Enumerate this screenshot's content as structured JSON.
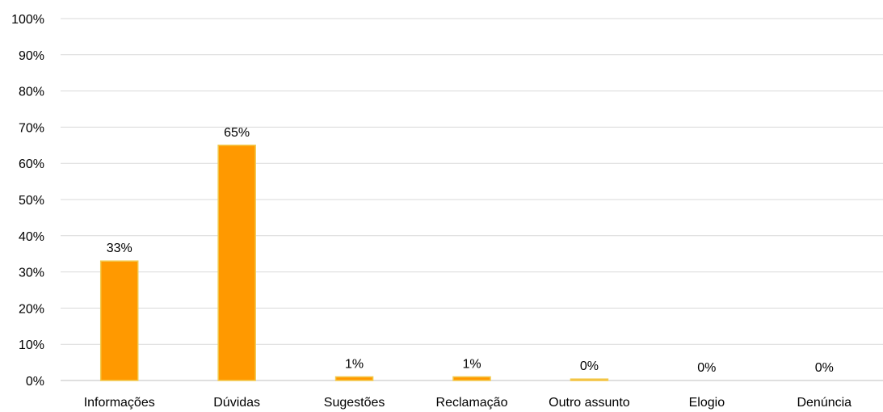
{
  "chart_data": {
    "type": "bar",
    "categories": [
      "Informações",
      "Dúvidas",
      "Sugestões",
      "Reclamação",
      "Outro assunto",
      "Elogio",
      "Denúncia"
    ],
    "values": [
      33,
      65,
      1,
      1,
      0.4,
      0,
      0
    ],
    "data_labels": [
      "33%",
      "65%",
      "1%",
      "1%",
      "0%",
      "0%",
      "0%"
    ],
    "y_ticks": [
      "0%",
      "10%",
      "20%",
      "30%",
      "40%",
      "50%",
      "60%",
      "70%",
      "80%",
      "90%",
      "100%"
    ],
    "ylim": [
      0,
      100
    ],
    "grid": true,
    "legend": "none",
    "colors": {
      "bar_fill": "#ff9900",
      "bar_stroke": "#f2c94c",
      "grid": "#d9d9d9",
      "text": "#000000"
    }
  }
}
